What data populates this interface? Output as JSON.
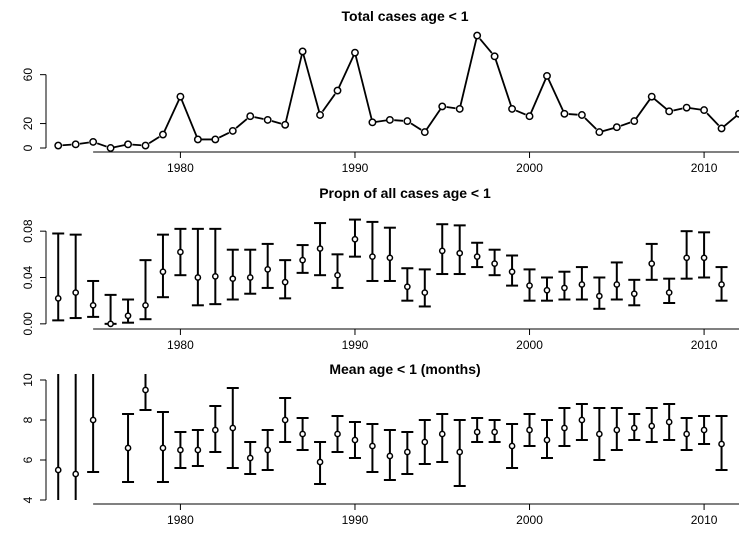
{
  "chart_data": [
    {
      "type": "line",
      "title": "Total cases age < 1",
      "xlabel": "",
      "ylabel": "",
      "xlim": [
        1972.3,
        2012.0
      ],
      "ylim": [
        0,
        90
      ],
      "x_ticks": [
        1980,
        1990,
        2000,
        2010
      ],
      "y_ticks": [
        0,
        20,
        60
      ],
      "x": [
        1973,
        1974,
        1975,
        1976,
        1977,
        1978,
        1979,
        1980,
        1981,
        1982,
        1983,
        1984,
        1985,
        1986,
        1987,
        1988,
        1989,
        1990,
        1991,
        1992,
        1993,
        1994,
        1995,
        1996,
        1997,
        1998,
        1999,
        2000,
        2001,
        2002,
        2003,
        2004,
        2005,
        2006,
        2007,
        2008,
        2009,
        2010,
        2011,
        2012
      ],
      "y": [
        2,
        3,
        5,
        0,
        3,
        2,
        11,
        42,
        7,
        7,
        14,
        26,
        23,
        19,
        79,
        27,
        47,
        78,
        21,
        23,
        22,
        13,
        34,
        32,
        92,
        75,
        32,
        26,
        59,
        28,
        27,
        13,
        17,
        22,
        42,
        30,
        33,
        31,
        16,
        28
      ],
      "line_breaks_after": [
        1976,
        1979,
        1980,
        1981,
        1986,
        1987,
        1989,
        1990,
        1991,
        1994,
        1996,
        1998,
        2000,
        2001,
        2004,
        2006,
        2007,
        2009,
        2011
      ]
    },
    {
      "type": "errorbar",
      "title": "Propn of all cases age < 1",
      "xlim": [
        1972.3,
        2012.0
      ],
      "ylim": [
        -0.001,
        0.1
      ],
      "x_ticks": [
        1980,
        1990,
        2000,
        2010
      ],
      "y_ticks": [
        "0.00",
        "0.04",
        "0.08"
      ],
      "y_tick_values": [
        0.0,
        0.04,
        0.08
      ],
      "x": [
        1973,
        1974,
        1975,
        1976,
        1977,
        1978,
        1979,
        1980,
        1981,
        1982,
        1983,
        1984,
        1985,
        1986,
        1987,
        1988,
        1989,
        1990,
        1991,
        1992,
        1993,
        1994,
        1995,
        1996,
        1997,
        1998,
        1999,
        2000,
        2001,
        2002,
        2003,
        2004,
        2005,
        2006,
        2007,
        2008,
        2009,
        2010,
        2011
      ],
      "y": [
        0.022,
        0.027,
        0.016,
        0.0,
        0.007,
        0.016,
        0.045,
        0.062,
        0.04,
        0.041,
        0.039,
        0.04,
        0.047,
        0.036,
        0.055,
        0.065,
        0.042,
        0.073,
        0.058,
        0.057,
        0.032,
        0.027,
        0.063,
        0.061,
        0.058,
        0.052,
        0.045,
        0.033,
        0.029,
        0.031,
        0.034,
        0.024,
        0.034,
        0.026,
        0.052,
        0.027,
        0.057,
        0.057,
        0.034
      ],
      "lower": [
        0.003,
        0.005,
        0.006,
        0.0,
        0.001,
        0.004,
        0.023,
        0.042,
        0.016,
        0.017,
        0.021,
        0.026,
        0.031,
        0.022,
        0.044,
        0.042,
        0.031,
        0.058,
        0.037,
        0.037,
        0.02,
        0.015,
        0.043,
        0.043,
        0.049,
        0.042,
        0.033,
        0.02,
        0.02,
        0.021,
        0.021,
        0.013,
        0.021,
        0.016,
        0.038,
        0.018,
        0.039,
        0.04,
        0.02
      ],
      "upper": [
        0.078,
        0.077,
        0.037,
        0.025,
        0.021,
        0.055,
        0.077,
        0.082,
        0.082,
        0.082,
        0.064,
        0.064,
        0.069,
        0.055,
        0.068,
        0.087,
        0.06,
        0.09,
        0.088,
        0.083,
        0.048,
        0.047,
        0.086,
        0.085,
        0.07,
        0.064,
        0.059,
        0.047,
        0.04,
        0.045,
        0.049,
        0.04,
        0.053,
        0.038,
        0.069,
        0.039,
        0.08,
        0.079,
        0.049
      ]
    },
    {
      "type": "errorbar",
      "title": "Mean age < 1 (months)",
      "xlim": [
        1972.3,
        2012.0
      ],
      "ylim": [
        4,
        10
      ],
      "x_ticks": [
        1980,
        1990,
        2000,
        2010
      ],
      "y_ticks": [
        4,
        6,
        8,
        10
      ],
      "x": [
        1973,
        1974,
        1975,
        1977,
        1978,
        1979,
        1980,
        1981,
        1982,
        1983,
        1984,
        1985,
        1986,
        1987,
        1988,
        1989,
        1990,
        1991,
        1992,
        1993,
        1994,
        1995,
        1996,
        1997,
        1998,
        1999,
        2000,
        2001,
        2002,
        2003,
        2004,
        2005,
        2006,
        2007,
        2008,
        2009,
        2010,
        2011
      ],
      "y": [
        5.5,
        5.3,
        8.0,
        6.6,
        9.5,
        6.6,
        6.5,
        6.5,
        7.5,
        7.6,
        6.1,
        6.5,
        8.0,
        7.3,
        5.9,
        7.3,
        7.0,
        6.7,
        6.2,
        6.4,
        6.9,
        7.3,
        6.4,
        7.4,
        7.4,
        6.7,
        7.5,
        7.0,
        7.6,
        8.0,
        7.3,
        7.5,
        7.6,
        7.7,
        7.9,
        7.3,
        7.5,
        6.8
      ],
      "lower": [
        3.7,
        3.7,
        5.4,
        4.9,
        8.5,
        4.9,
        5.6,
        5.7,
        6.4,
        5.6,
        5.3,
        5.5,
        6.9,
        6.5,
        4.8,
        6.4,
        6.1,
        5.4,
        5.0,
        5.3,
        5.8,
        5.9,
        4.7,
        6.9,
        6.9,
        5.6,
        6.7,
        6.1,
        6.7,
        7.0,
        6.0,
        6.5,
        7.0,
        6.9,
        7.0,
        6.5,
        6.8,
        5.5
      ],
      "upper": [
        10.5,
        10.5,
        10.5,
        8.3,
        10.5,
        8.4,
        7.4,
        7.5,
        8.7,
        9.6,
        6.9,
        7.5,
        9.1,
        8.1,
        6.9,
        8.2,
        7.9,
        7.8,
        7.5,
        7.4,
        8.0,
        8.3,
        8.0,
        8.1,
        8.0,
        7.8,
        8.3,
        8.0,
        8.6,
        8.8,
        8.6,
        8.6,
        8.3,
        8.6,
        8.8,
        8.1,
        8.2,
        8.2
      ]
    }
  ]
}
